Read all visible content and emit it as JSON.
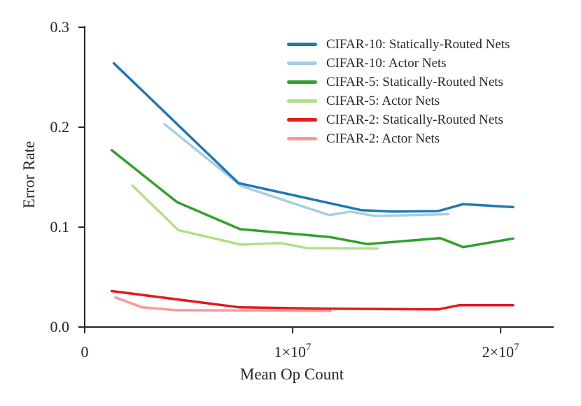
{
  "chart_data": {
    "type": "line",
    "title": "",
    "xlabel": "Mean Op Count",
    "ylabel": "Error Rate",
    "xlim": [
      0,
      22520000
    ],
    "ylim": [
      0,
      0.3007
    ],
    "grid": false,
    "legend": {
      "position": "upper-right-inside",
      "frame": false
    },
    "background_color": "#ffffff",
    "axis_color": "#262626",
    "text_color": "#262626",
    "x_ticks": [
      {
        "value": 0,
        "label": "0"
      },
      {
        "value": 10000000,
        "label": "1×10",
        "exp": "7"
      },
      {
        "value": 20000000,
        "label": "2×10",
        "exp": "7"
      }
    ],
    "y_ticks": [
      {
        "value": 0.0,
        "label": "0.0"
      },
      {
        "value": 0.1,
        "label": "0.1"
      },
      {
        "value": 0.2,
        "label": "0.2"
      },
      {
        "value": 0.3,
        "label": "0.3"
      }
    ],
    "series": [
      {
        "name": "CIFAR-10: Statically-Routed Nets",
        "color": "#1f78b4",
        "points": [
          [
            1400000,
            0.264
          ],
          [
            7400000,
            0.144
          ],
          [
            13300000,
            0.117
          ],
          [
            14800000,
            0.1155
          ],
          [
            17000000,
            0.116
          ],
          [
            18200000,
            0.123
          ],
          [
            20600000,
            0.12
          ]
        ]
      },
      {
        "name": "CIFAR-10: Actor Nets",
        "color": "#a6cee3",
        "points": [
          [
            3840000,
            0.203
          ],
          [
            7540000,
            0.141
          ],
          [
            11750000,
            0.112
          ],
          [
            12800000,
            0.1155
          ],
          [
            14000000,
            0.111
          ],
          [
            17500000,
            0.113
          ]
        ]
      },
      {
        "name": "CIFAR-5: Statically-Routed Nets",
        "color": "#33a02c",
        "points": [
          [
            1300000,
            0.177
          ],
          [
            4440000,
            0.125
          ],
          [
            7470000,
            0.098
          ],
          [
            11800000,
            0.09
          ],
          [
            13600000,
            0.083
          ],
          [
            17100000,
            0.089
          ],
          [
            18200000,
            0.08
          ],
          [
            20600000,
            0.0885
          ]
        ]
      },
      {
        "name": "CIFAR-5: Actor Nets",
        "color": "#b2df8a",
        "points": [
          [
            2300000,
            0.1415
          ],
          [
            4500000,
            0.097
          ],
          [
            7500000,
            0.0825
          ],
          [
            9400000,
            0.084
          ],
          [
            10700000,
            0.079
          ],
          [
            14100000,
            0.0785
          ]
        ]
      },
      {
        "name": "CIFAR-2: Statically-Routed Nets",
        "color": "#e31a1c",
        "points": [
          [
            1300000,
            0.036
          ],
          [
            7440000,
            0.0197
          ],
          [
            11800000,
            0.0183
          ],
          [
            17000000,
            0.0176
          ],
          [
            18000000,
            0.0218
          ],
          [
            20600000,
            0.0218
          ]
        ]
      },
      {
        "name": "CIFAR-2: Actor Nets",
        "color": "#fb9a99",
        "points": [
          [
            1480000,
            0.0296
          ],
          [
            2760000,
            0.0197
          ],
          [
            4340000,
            0.0169
          ],
          [
            11800000,
            0.0162
          ]
        ]
      }
    ]
  }
}
